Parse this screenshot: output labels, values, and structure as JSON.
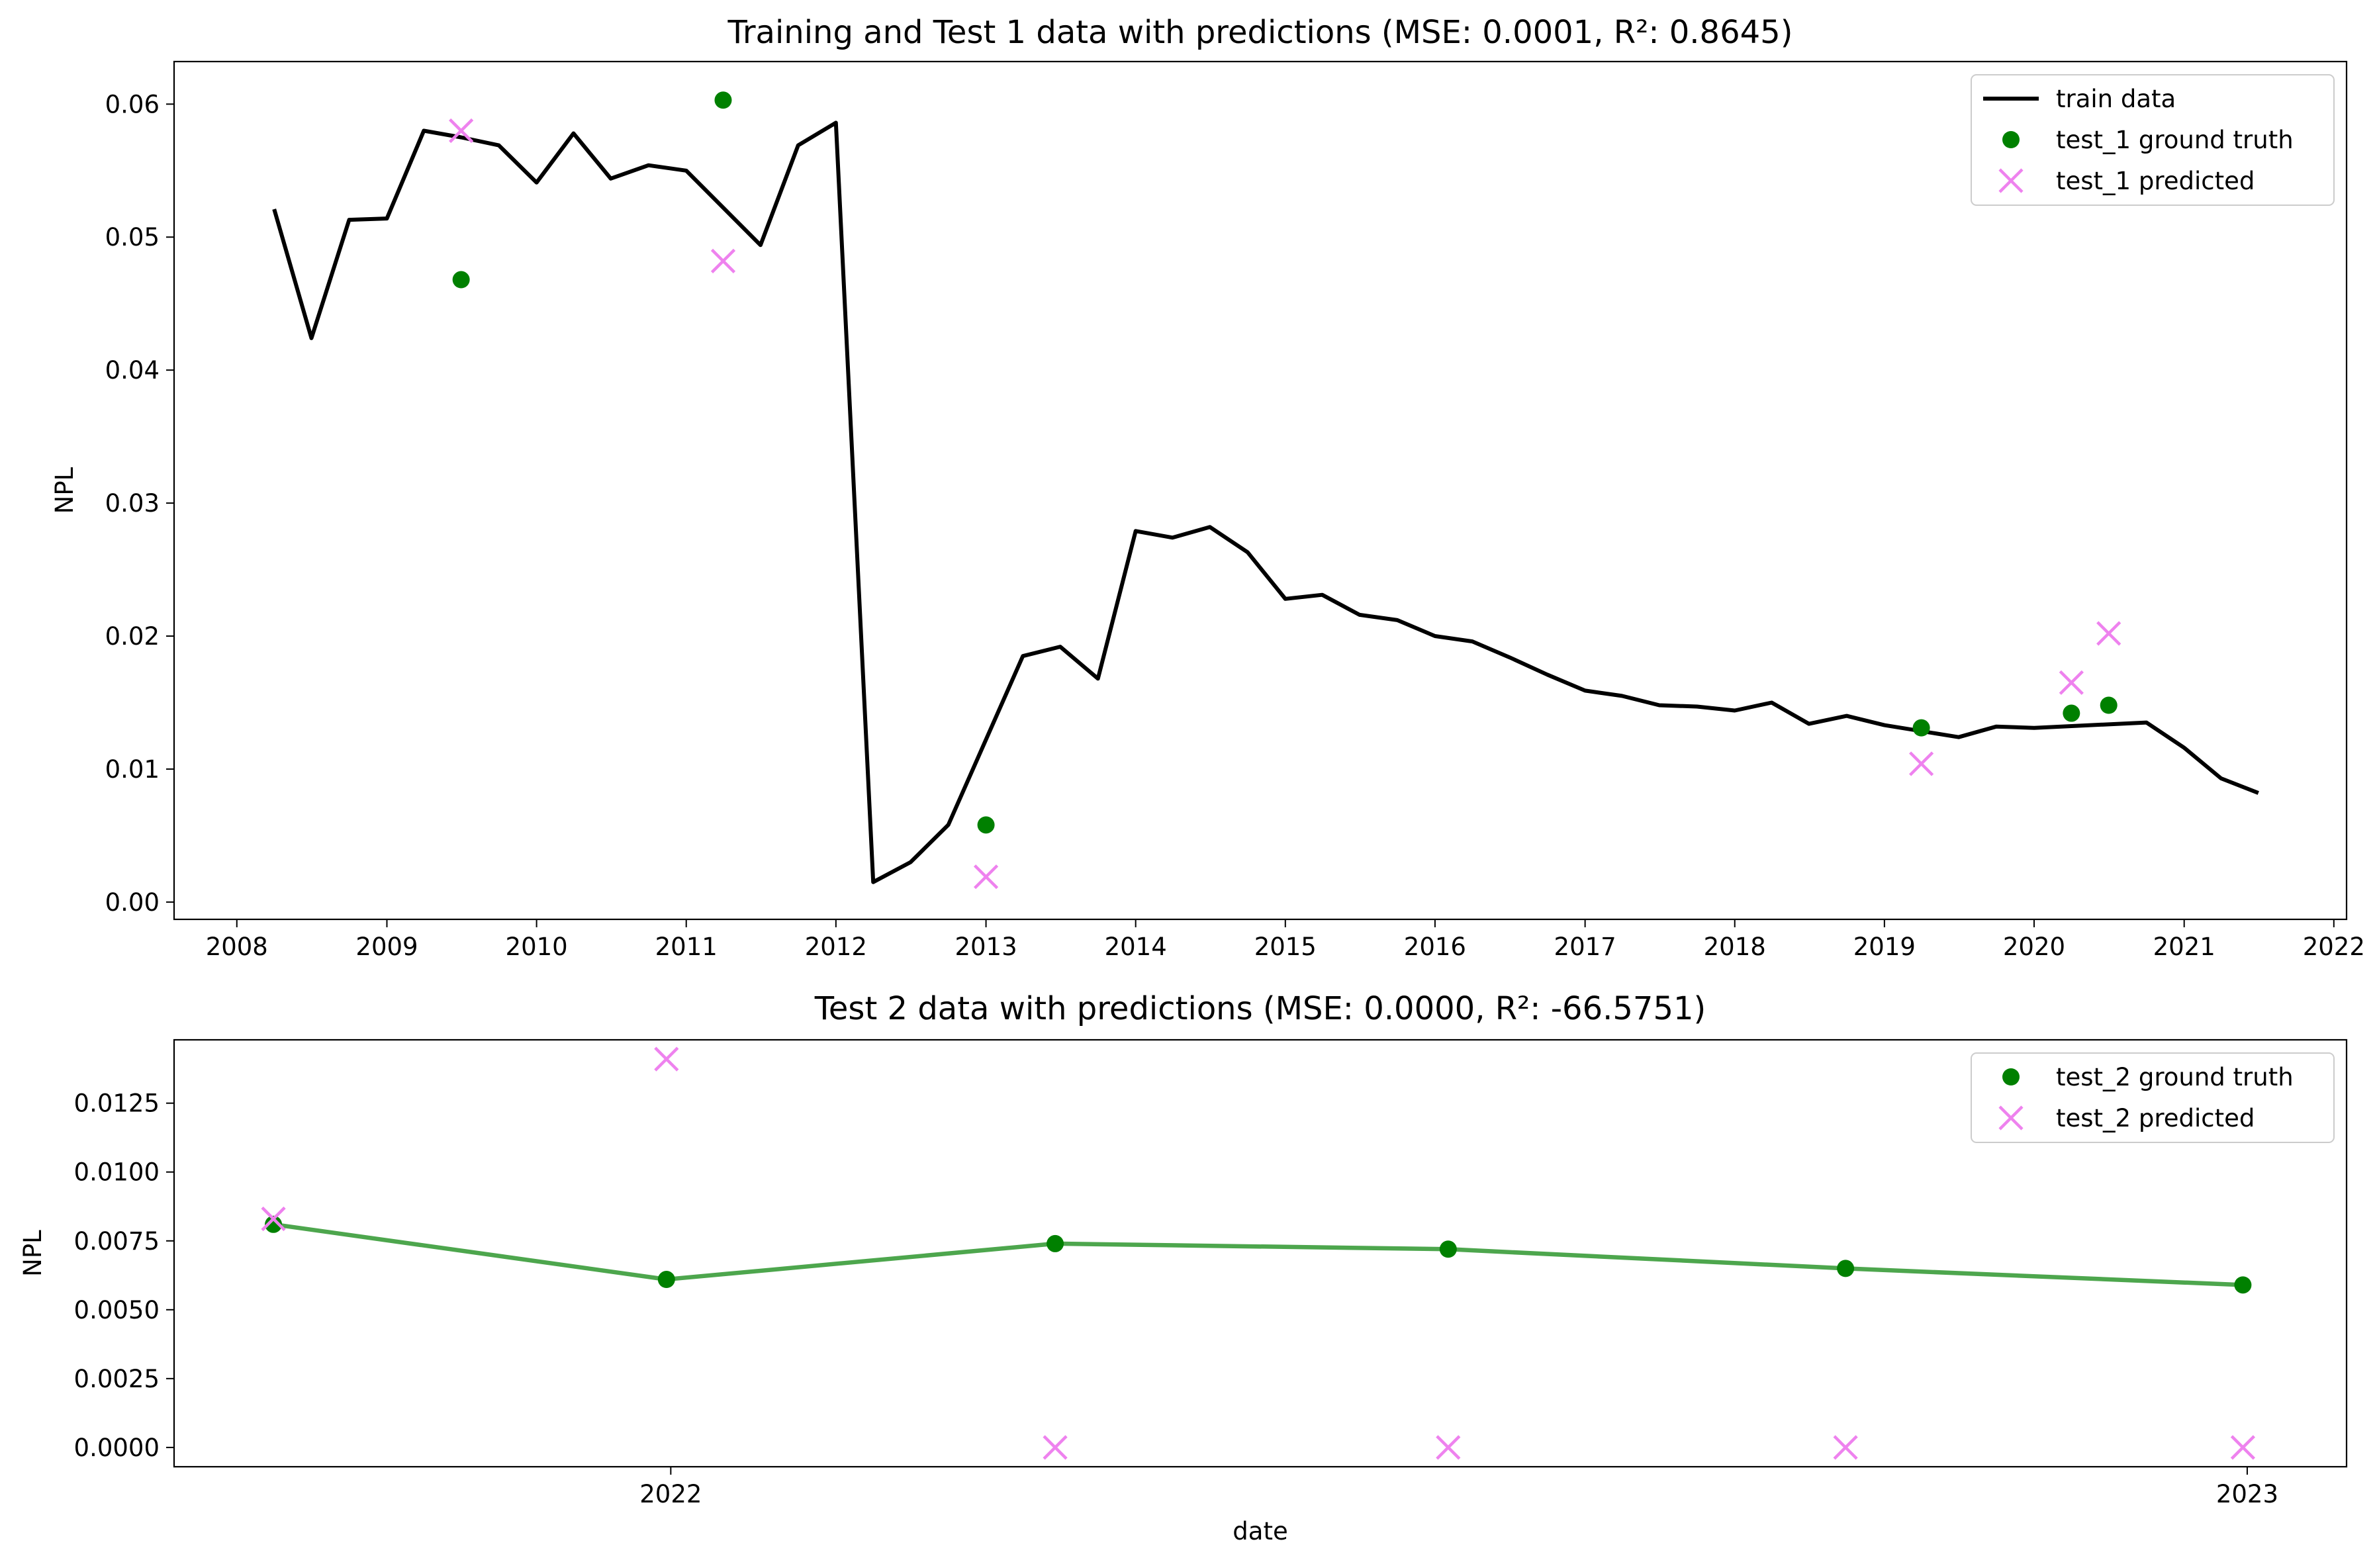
{
  "chart_data": [
    {
      "type": "line",
      "title": "Training and Test 1 data with predictions (MSE: 0.0001, R²: 0.8645)",
      "xlabel": "",
      "ylabel": "NPL",
      "x_type": "date",
      "xlim": [
        "2007-08-01",
        "2022-02-01"
      ],
      "ylim": [
        -0.0013,
        0.0632
      ],
      "grid": false,
      "legend_position": "top-right",
      "x_ticks": [
        "2008",
        "2009",
        "2010",
        "2011",
        "2012",
        "2013",
        "2014",
        "2015",
        "2016",
        "2017",
        "2018",
        "2019",
        "2020",
        "2021",
        "2022"
      ],
      "y_ticks": [
        "0.00",
        "0.01",
        "0.02",
        "0.03",
        "0.04",
        "0.05",
        "0.06"
      ],
      "series": [
        {
          "name": "train data",
          "kind": "line",
          "color": "#000000",
          "points": [
            {
              "x": "2008-04-01",
              "y": 0.0521
            },
            {
              "x": "2008-07-01",
              "y": 0.0424
            },
            {
              "x": "2008-10-01",
              "y": 0.0513
            },
            {
              "x": "2009-01-01",
              "y": 0.0514
            },
            {
              "x": "2009-04-01",
              "y": 0.058
            },
            {
              "x": "2009-07-01",
              "y": 0.0575
            },
            {
              "x": "2009-10-01",
              "y": 0.0569
            },
            {
              "x": "2010-01-01",
              "y": 0.0541
            },
            {
              "x": "2010-04-01",
              "y": 0.0578
            },
            {
              "x": "2010-07-01",
              "y": 0.0544
            },
            {
              "x": "2010-10-01",
              "y": 0.0554
            },
            {
              "x": "2011-01-01",
              "y": 0.055
            },
            {
              "x": "2011-07-01",
              "y": 0.0494
            },
            {
              "x": "2011-10-01",
              "y": 0.0569
            },
            {
              "x": "2012-01-01",
              "y": 0.0586
            },
            {
              "x": "2012-04-01",
              "y": 0.0015
            },
            {
              "x": "2012-07-01",
              "y": 0.003
            },
            {
              "x": "2012-10-01",
              "y": 0.0058
            },
            {
              "x": "2013-04-01",
              "y": 0.0185
            },
            {
              "x": "2013-07-01",
              "y": 0.0192
            },
            {
              "x": "2013-10-01",
              "y": 0.0168
            },
            {
              "x": "2014-01-01",
              "y": 0.0279
            },
            {
              "x": "2014-04-01",
              "y": 0.0274
            },
            {
              "x": "2014-07-01",
              "y": 0.0282
            },
            {
              "x": "2014-10-01",
              "y": 0.0263
            },
            {
              "x": "2015-01-01",
              "y": 0.0228
            },
            {
              "x": "2015-04-01",
              "y": 0.0231
            },
            {
              "x": "2015-07-01",
              "y": 0.0216
            },
            {
              "x": "2015-10-01",
              "y": 0.0212
            },
            {
              "x": "2016-01-01",
              "y": 0.02
            },
            {
              "x": "2016-04-01",
              "y": 0.0196
            },
            {
              "x": "2016-07-01",
              "y": 0.0184
            },
            {
              "x": "2016-10-01",
              "y": 0.0171
            },
            {
              "x": "2017-01-01",
              "y": 0.0159
            },
            {
              "x": "2017-04-01",
              "y": 0.0155
            },
            {
              "x": "2017-07-01",
              "y": 0.0148
            },
            {
              "x": "2017-10-01",
              "y": 0.0147
            },
            {
              "x": "2018-01-01",
              "y": 0.0144
            },
            {
              "x": "2018-04-01",
              "y": 0.015
            },
            {
              "x": "2018-07-01",
              "y": 0.0134
            },
            {
              "x": "2018-10-01",
              "y": 0.014
            },
            {
              "x": "2019-01-01",
              "y": 0.0133
            },
            {
              "x": "2019-07-01",
              "y": 0.0124
            },
            {
              "x": "2019-10-01",
              "y": 0.0132
            },
            {
              "x": "2020-01-01",
              "y": 0.0131
            },
            {
              "x": "2020-10-01",
              "y": 0.0135
            },
            {
              "x": "2021-01-01",
              "y": 0.0116
            },
            {
              "x": "2021-04-01",
              "y": 0.0093
            },
            {
              "x": "2021-07-01",
              "y": 0.0082
            }
          ]
        },
        {
          "name": "test_1 ground truth",
          "kind": "scatter",
          "marker": "circle",
          "color": "#008000",
          "points": [
            {
              "x": "2009-07-01",
              "y": 0.0468
            },
            {
              "x": "2011-04-01",
              "y": 0.0603
            },
            {
              "x": "2013-01-01",
              "y": 0.0058
            },
            {
              "x": "2019-04-01",
              "y": 0.0131
            },
            {
              "x": "2020-04-01",
              "y": 0.0142
            },
            {
              "x": "2020-07-01",
              "y": 0.0148
            }
          ]
        },
        {
          "name": "test_1 predicted",
          "kind": "scatter",
          "marker": "x",
          "color": "#ee82ee",
          "points": [
            {
              "x": "2009-07-01",
              "y": 0.058
            },
            {
              "x": "2011-04-01",
              "y": 0.0482
            },
            {
              "x": "2013-01-01",
              "y": 0.0019
            },
            {
              "x": "2019-04-01",
              "y": 0.0104
            },
            {
              "x": "2020-04-01",
              "y": 0.0165
            },
            {
              "x": "2020-07-01",
              "y": 0.0202
            }
          ]
        }
      ]
    },
    {
      "type": "line",
      "title": "Test 2 data with predictions (MSE: 0.0000, R²: -66.5751)",
      "xlabel": "date",
      "ylabel": "NPL",
      "x_type": "date",
      "xlim": [
        "2021-09-08",
        "2023-01-24"
      ],
      "ylim": [
        -0.0007,
        0.0148
      ],
      "grid": false,
      "legend_position": "top-right",
      "x_ticks": [
        {
          "label": "2022",
          "x": "2022-01-01"
        },
        {
          "label": "2023",
          "x": "2023-01-01"
        }
      ],
      "y_ticks": [
        "0.0000",
        "0.0025",
        "0.0050",
        "0.0075",
        "0.0100",
        "0.0125"
      ],
      "series": [
        {
          "name": "",
          "kind": "line",
          "color": "#2e962e",
          "points": [
            {
              "x": "2021-10-01",
              "y": 0.0081
            },
            {
              "x": "2021-12-31",
              "y": 0.0061
            },
            {
              "x": "2022-03-31",
              "y": 0.0074
            },
            {
              "x": "2022-06-30",
              "y": 0.0072
            },
            {
              "x": "2022-09-30",
              "y": 0.0065
            },
            {
              "x": "2022-12-31",
              "y": 0.0059
            }
          ]
        },
        {
          "name": "test_2 ground truth",
          "kind": "scatter",
          "marker": "circle",
          "color": "#008000",
          "points": [
            {
              "x": "2021-10-01",
              "y": 0.0081
            },
            {
              "x": "2021-12-31",
              "y": 0.0061
            },
            {
              "x": "2022-03-31",
              "y": 0.0074
            },
            {
              "x": "2022-06-30",
              "y": 0.0072
            },
            {
              "x": "2022-09-30",
              "y": 0.0065
            },
            {
              "x": "2022-12-31",
              "y": 0.0059
            }
          ]
        },
        {
          "name": "test_2 predicted",
          "kind": "scatter",
          "marker": "x",
          "color": "#ee82ee",
          "points": [
            {
              "x": "2021-10-01",
              "y": 0.0083
            },
            {
              "x": "2021-12-31",
              "y": 0.0141
            },
            {
              "x": "2022-03-31",
              "y": 0.0
            },
            {
              "x": "2022-06-30",
              "y": 0.0
            },
            {
              "x": "2022-09-30",
              "y": 0.0
            },
            {
              "x": "2022-12-31",
              "y": 0.0
            }
          ]
        }
      ]
    }
  ]
}
